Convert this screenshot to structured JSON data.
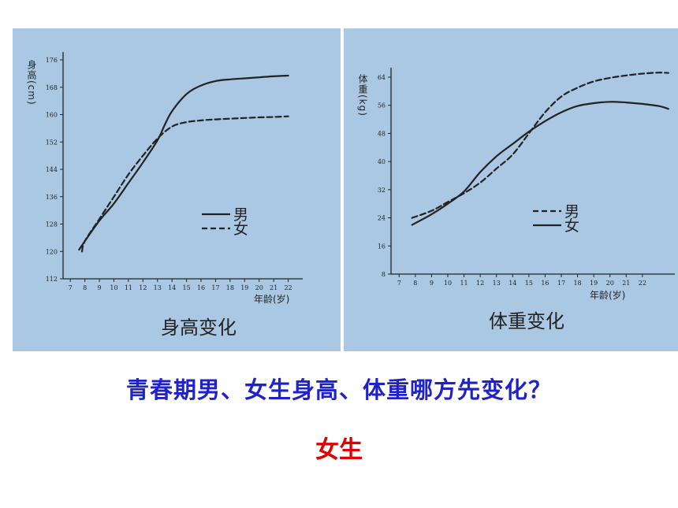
{
  "slide": {
    "question": "青春期男、女生身高、体重哪方先变化？",
    "answer": "女生",
    "colors": {
      "panel_bg": "#aac8e4",
      "question": "#1f22c8",
      "answer": "#e00000",
      "ink": "#222222"
    }
  },
  "chart_data": [
    {
      "type": "line",
      "caption": "身高变化",
      "ylabel": "身高(cm)",
      "xlabel": "年龄(岁)",
      "ylim": [
        112,
        176
      ],
      "yticks": [
        112,
        120,
        128,
        136,
        144,
        152,
        160,
        168,
        176
      ],
      "xlim": [
        6.5,
        23
      ],
      "xticks": [
        7,
        8,
        9,
        10,
        11,
        12,
        13,
        14,
        15,
        16,
        17,
        18,
        19,
        20,
        21,
        22
      ],
      "grid": false,
      "legend_position": "lower-right",
      "series": [
        {
          "name": "男",
          "style": "solid",
          "x": [
            7.6,
            8,
            9,
            10,
            11,
            12,
            13,
            13.5,
            14,
            15,
            16,
            17,
            18,
            19,
            20,
            21,
            22
          ],
          "y": [
            120.5,
            123,
            129,
            134,
            140,
            146,
            152.5,
            157,
            161,
            166,
            168.5,
            169.8,
            170.3,
            170.6,
            170.9,
            171.2,
            171.4
          ]
        },
        {
          "name": "女",
          "style": "dashed",
          "x": [
            7.8,
            8,
            9,
            10,
            11,
            12,
            13,
            14,
            15,
            16,
            17,
            18,
            19,
            20,
            21,
            22
          ],
          "y": [
            120,
            123,
            129.5,
            136,
            142.5,
            148,
            153,
            156.5,
            157.8,
            158.3,
            158.6,
            158.8,
            159.0,
            159.2,
            159.3,
            159.5
          ]
        }
      ]
    },
    {
      "type": "line",
      "caption": "体重变化",
      "ylabel": "体重(kg)",
      "xlabel": "年龄(岁)",
      "ylim": [
        8,
        64
      ],
      "yticks": [
        8,
        16,
        24,
        32,
        40,
        48,
        56,
        64
      ],
      "xlim": [
        6.5,
        24
      ],
      "xticks": [
        7,
        8,
        9,
        10,
        11,
        12,
        13,
        14,
        15,
        16,
        17,
        18,
        19,
        20,
        21,
        22
      ],
      "grid": false,
      "legend_position": "lower-right",
      "series": [
        {
          "name": "男",
          "style": "dashed",
          "x": [
            7.8,
            9,
            10,
            11,
            12,
            13,
            14,
            15,
            16,
            17,
            18,
            19,
            20,
            21,
            22,
            23,
            23.6
          ],
          "y": [
            24,
            26,
            28.5,
            31,
            34,
            38,
            42,
            48,
            54,
            58.5,
            61,
            62.8,
            63.8,
            64.5,
            65,
            65.3,
            65.2
          ]
        },
        {
          "name": "女",
          "style": "solid",
          "x": [
            7.8,
            9,
            10,
            11,
            12,
            13,
            14,
            15,
            16,
            17,
            18,
            19,
            20,
            21,
            22,
            23,
            23.6
          ],
          "y": [
            22,
            25,
            28,
            31.5,
            37,
            41.5,
            45,
            48.5,
            51.5,
            54,
            55.8,
            56.6,
            57,
            56.8,
            56.4,
            55.8,
            55
          ]
        }
      ]
    }
  ]
}
